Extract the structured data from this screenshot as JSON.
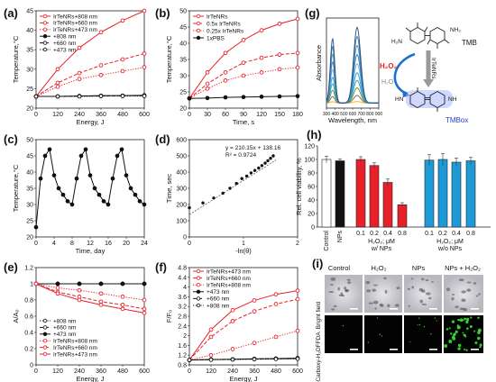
{
  "colors": {
    "red": "#e8202a",
    "black": "#111111",
    "blue": "#1e9ad6",
    "tmb_ox": "#2b3bd6"
  },
  "chart_data": [
    {
      "id": "a",
      "panel_label": "(a)",
      "type": "line",
      "xlabel": "Energy, J",
      "ylabel": "Temperature,°C",
      "x": [
        0,
        120,
        240,
        360,
        480,
        600
      ],
      "xticks": [
        "0",
        "120",
        "240",
        "360",
        "480",
        "600"
      ],
      "ylim": [
        20,
        45
      ],
      "yticks": [
        "20",
        "25",
        "30",
        "35",
        "40",
        "45"
      ],
      "legend_position": "top-left",
      "series": [
        {
          "name": "IrTeNRs+808 nm",
          "color": "#e8202a",
          "dash": "solid",
          "marker": "circle-open",
          "values": [
            23,
            30,
            35.5,
            39.5,
            42.5,
            45
          ]
        },
        {
          "name": "IrTeNRs+660 nm",
          "color": "#e8202a",
          "dash": "dash",
          "marker": "circle-open",
          "values": [
            23,
            26.5,
            29,
            31,
            32.5,
            34
          ]
        },
        {
          "name": "IrTeNRs+473 nm",
          "color": "#e8202a",
          "dash": "dot",
          "marker": "circle-open",
          "values": [
            23,
            25.5,
            27.5,
            28.5,
            29.5,
            30.5
          ]
        },
        {
          "name": "+808 nm",
          "color": "#111111",
          "dash": "solid",
          "marker": "circle",
          "values": [
            23,
            23,
            23.1,
            23.2,
            23.2,
            23.3
          ]
        },
        {
          "name": "+660 nm",
          "color": "#111111",
          "dash": "dash",
          "marker": "circle-open",
          "values": [
            23,
            23,
            23.1,
            23.1,
            23.2,
            23.2
          ]
        },
        {
          "name": "+473 nm",
          "color": "#111111",
          "dash": "dot",
          "marker": "circle-open",
          "values": [
            23,
            23,
            23,
            23.1,
            23.1,
            23.1
          ]
        }
      ]
    },
    {
      "id": "b",
      "panel_label": "(b)",
      "type": "line",
      "xlabel": "Time, s",
      "ylabel": "Temperature,°C",
      "x": [
        0,
        30,
        60,
        90,
        120,
        150,
        180
      ],
      "xticks": [
        "0",
        "30",
        "60",
        "90",
        "120",
        "150",
        "180"
      ],
      "ylim": [
        20,
        50
      ],
      "yticks": [
        "20",
        "25",
        "30",
        "35",
        "40",
        "45",
        "50"
      ],
      "legend_position": "top-left",
      "series": [
        {
          "name": "IrTeNRs",
          "color": "#e8202a",
          "dash": "solid",
          "marker": "circle-open",
          "values": [
            23,
            31,
            37,
            41,
            44,
            46,
            47.5
          ]
        },
        {
          "name": "0.5x IrTeNRs",
          "color": "#e8202a",
          "dash": "dash",
          "marker": "circle-open",
          "values": [
            23,
            27.5,
            31,
            34,
            35.5,
            36.5,
            37
          ]
        },
        {
          "name": "0.25x IrTeNRs",
          "color": "#e8202a",
          "dash": "dot",
          "marker": "circle-open",
          "values": [
            23,
            26,
            28.5,
            30,
            31,
            32,
            32.5
          ]
        },
        {
          "name": "1xPBS",
          "color": "#111111",
          "dash": "solid",
          "marker": "circle",
          "values": [
            23,
            23.1,
            23.3,
            23.4,
            23.5,
            23.6,
            23.7
          ]
        }
      ]
    },
    {
      "id": "c",
      "panel_label": "(c)",
      "type": "line",
      "xlabel": "Time, day",
      "ylabel": "Temperature,°C",
      "x": [
        0,
        1,
        2,
        3,
        4,
        5,
        6,
        7,
        8,
        9,
        10,
        11,
        12,
        13,
        14,
        15,
        16,
        17,
        18,
        19,
        20,
        21,
        22,
        23,
        24
      ],
      "xticks": [
        "0",
        "4",
        "8",
        "12",
        "16",
        "20",
        "24"
      ],
      "ylim": [
        20,
        50
      ],
      "yticks": [
        "20",
        "25",
        "30",
        "35",
        "40",
        "45",
        "50"
      ],
      "series": [
        {
          "name": "",
          "color": "#111111",
          "dash": "solid",
          "marker": "circle",
          "values": [
            23,
            38,
            45,
            47,
            39,
            35,
            33,
            31,
            30,
            38,
            45,
            47,
            39,
            35,
            33,
            31,
            30,
            38,
            45,
            47,
            39,
            35,
            33,
            31,
            30
          ]
        }
      ]
    },
    {
      "id": "d",
      "panel_label": "(d)",
      "type": "scatter",
      "xlabel": "-ln(θ)",
      "ylabel": "Time, sec",
      "x": [
        0.0,
        0.25,
        0.45,
        0.62,
        0.75,
        0.87,
        0.97,
        1.06,
        1.14,
        1.21,
        1.28,
        1.34,
        1.4,
        1.45,
        1.5,
        1.55
      ],
      "y": [
        180,
        210,
        240,
        270,
        300,
        330,
        360,
        375,
        395,
        410,
        425,
        440,
        455,
        470,
        485,
        500
      ],
      "xlim": [
        0,
        2
      ],
      "xticks": [
        "0",
        "1",
        "2"
      ],
      "ylim": [
        0,
        600
      ],
      "yticks": [
        "0",
        "100",
        "200",
        "300",
        "400",
        "500",
        "600"
      ],
      "fit_slope": 210.15,
      "fit_intercept": 138.16,
      "fit_equation": "y = 210.15x + 138.16",
      "r_squared": "R² = 0.9724"
    },
    {
      "id": "e",
      "panel_label": "(e)",
      "type": "line",
      "xlabel": "Energy, J",
      "ylabel": "A/A₀",
      "x": [
        0,
        120,
        240,
        360,
        480,
        600
      ],
      "xticks": [
        "0",
        "120",
        "240",
        "360",
        "480",
        "600"
      ],
      "ylim": [
        0,
        1.2
      ],
      "yticks": [
        "0",
        "0.2",
        "0.4",
        "0.6",
        "0.8",
        "1",
        "1.2"
      ],
      "legend_position": "bottom-left",
      "series": [
        {
          "name": "+808 nm",
          "color": "#111111",
          "dash": "dot",
          "marker": "circle-open",
          "values": [
            1,
            1,
            1,
            1,
            1,
            1
          ]
        },
        {
          "name": "+660 nm",
          "color": "#111111",
          "dash": "dash",
          "marker": "circle-open",
          "values": [
            1,
            1,
            1,
            1,
            1,
            1
          ]
        },
        {
          "name": "+473 nm",
          "color": "#111111",
          "dash": "solid",
          "marker": "circle",
          "values": [
            1,
            1,
            1,
            1,
            1,
            1
          ]
        },
        {
          "name": "IrTeNRs+808 nm",
          "color": "#e8202a",
          "dash": "dot",
          "marker": "circle-open",
          "values": [
            1,
            0.95,
            0.92,
            0.88,
            0.84,
            0.8
          ]
        },
        {
          "name": "IrTeNRs+660 nm",
          "color": "#e8202a",
          "dash": "dash",
          "marker": "circle-open",
          "values": [
            1,
            0.9,
            0.84,
            0.78,
            0.74,
            0.69
          ]
        },
        {
          "name": "IrTeNRs+473 nm",
          "color": "#e8202a",
          "dash": "solid",
          "marker": "circle-open",
          "values": [
            1,
            0.88,
            0.8,
            0.74,
            0.69,
            0.64
          ]
        }
      ]
    },
    {
      "id": "f",
      "panel_label": "(f)",
      "type": "line",
      "xlabel": "Energy, J",
      "ylabel": "F/F₀",
      "x": [
        0,
        120,
        240,
        360,
        480,
        600
      ],
      "xticks": [
        "0",
        "120",
        "240",
        "360",
        "480",
        "600"
      ],
      "ylim": [
        0.8,
        4.8
      ],
      "yticks": [
        "0.8",
        "1.2",
        "1.6",
        "2",
        "2.4",
        "2.8",
        "3.2",
        "3.6",
        "4",
        "4.4",
        "4.8"
      ],
      "legend_position": "top-left",
      "series": [
        {
          "name": "IrTeNRs+473 nm",
          "color": "#e8202a",
          "dash": "solid",
          "marker": "circle-open",
          "values": [
            1,
            2.25,
            3.05,
            3.45,
            3.7,
            3.85
          ]
        },
        {
          "name": "IrTeNRs+660 nm",
          "color": "#e8202a",
          "dash": "dash",
          "marker": "circle-open",
          "values": [
            1,
            1.95,
            2.6,
            3.0,
            3.3,
            3.5
          ]
        },
        {
          "name": "IrTeNRs+808 nm",
          "color": "#e8202a",
          "dash": "dot",
          "marker": "circle-open",
          "values": [
            1,
            1.2,
            1.45,
            1.7,
            1.95,
            2.2
          ]
        },
        {
          "name": "+473 nm",
          "color": "#111111",
          "dash": "solid",
          "marker": "circle",
          "values": [
            1,
            1.02,
            1.03,
            1.05,
            1.06,
            1.08
          ]
        },
        {
          "name": "+660 nm",
          "color": "#111111",
          "dash": "dash",
          "marker": "circle-open",
          "values": [
            1,
            1.02,
            1.03,
            1.04,
            1.05,
            1.06
          ]
        },
        {
          "name": "+808 nm",
          "color": "#111111",
          "dash": "dot",
          "marker": "circle-open",
          "values": [
            1,
            1.01,
            1.02,
            1.03,
            1.04,
            1.05
          ]
        }
      ]
    },
    {
      "id": "g",
      "panel_label": "(g)",
      "type": "line",
      "xlabel": "Wavelength, nm",
      "ylabel": "Absorbance",
      "xlim": [
        300,
        900
      ],
      "xticks": [
        "300",
        "400",
        "500",
        "600",
        "700",
        "800",
        "900"
      ],
      "peaks_nm": [
        370,
        652
      ],
      "band_fwhm_nm": [
        60,
        95
      ],
      "series_peak_heights": [
        0.02,
        0.1,
        0.2,
        0.3,
        0.4,
        0.52,
        0.64,
        0.76,
        0.88,
        1.0
      ],
      "series_colors": [
        "#f5a623",
        "#8e5f2a",
        "#5e8d3c",
        "#3da0a8",
        "#1e9ad6",
        "#6bb3e0",
        "#2e7bb8",
        "#4a90c0",
        "#3d6fa0",
        "#224f80"
      ]
    },
    {
      "id": "h",
      "panel_label": "(h)",
      "type": "bar",
      "ylabel": "Rel. cell viability, %",
      "ylim": [
        0,
        120
      ],
      "yticks": [
        "0",
        "20",
        "40",
        "60",
        "80",
        "100",
        "120"
      ],
      "categories": [
        "Control",
        "NPs",
        "0.1",
        "0.2",
        "0.4",
        "0.8",
        "0.1",
        "0.2",
        "0.4",
        "0.8"
      ],
      "values": [
        100,
        98,
        100,
        91,
        66,
        33,
        99,
        100,
        96,
        98
      ],
      "errors": [
        5,
        3,
        4,
        4,
        5,
        3,
        8,
        9,
        6,
        5
      ],
      "bar_colors": [
        "#ffffff",
        "#111111",
        "#e8202a",
        "#e8202a",
        "#e8202a",
        "#e8202a",
        "#1e9ad6",
        "#1e9ad6",
        "#1e9ad6",
        "#1e9ad6"
      ],
      "group_label_1": "H₂O₂; μM",
      "group_sub_1": "w/ NPs",
      "group_label_2": "H₂O₂; μM",
      "group_sub_2": "w/o NPs"
    }
  ],
  "scheme": {
    "tmb": "TMB",
    "tmb_ox": "TMBox",
    "h2o2": "H₂O₂",
    "h2o": "H₂O",
    "enzyme": "IrTeNRs",
    "nh2": "NH₂",
    "h2n": "H₂N",
    "hn": "HN",
    "nh": "NH"
  },
  "micrographs": {
    "panel_label": "(i)",
    "columns": [
      "Control",
      "H₂O₂",
      "NPs",
      "NPs + H₂O₂"
    ],
    "rows": [
      "Bright field",
      "Carboxy-H₂DFFDA"
    ]
  }
}
